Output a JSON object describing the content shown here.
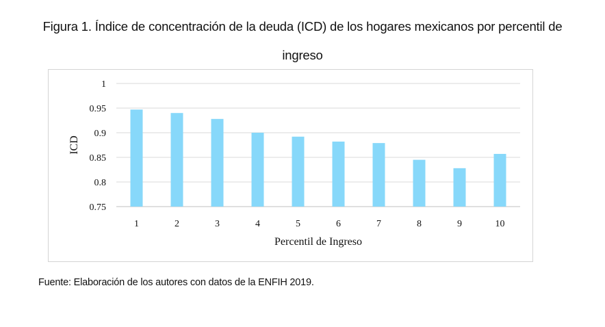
{
  "title_line1": "Figura 1. Índice de concentración de la deuda (ICD) de los hogares mexicanos por percentil de",
  "title_line2": "ingreso",
  "source": "Fuente: Elaboración de los autores con datos de la ENFIH 2019.",
  "colors": {
    "bar": "#87D8FA",
    "grid": "#d9d9d9",
    "axis": "#bfbfbf"
  },
  "chart_data": {
    "type": "bar",
    "categories": [
      "1",
      "2",
      "3",
      "4",
      "5",
      "6",
      "7",
      "8",
      "9",
      "10"
    ],
    "values": [
      0.947,
      0.94,
      0.928,
      0.9,
      0.892,
      0.882,
      0.879,
      0.845,
      0.828,
      0.857
    ],
    "xlabel": "Percentil de Ingreso",
    "ylabel": "ICD",
    "ylim": [
      0.75,
      1
    ],
    "yticks": [
      "0.75",
      "0.8",
      "0.85",
      "0.9",
      "0.95",
      "1"
    ],
    "grid": true,
    "legend": "none"
  }
}
